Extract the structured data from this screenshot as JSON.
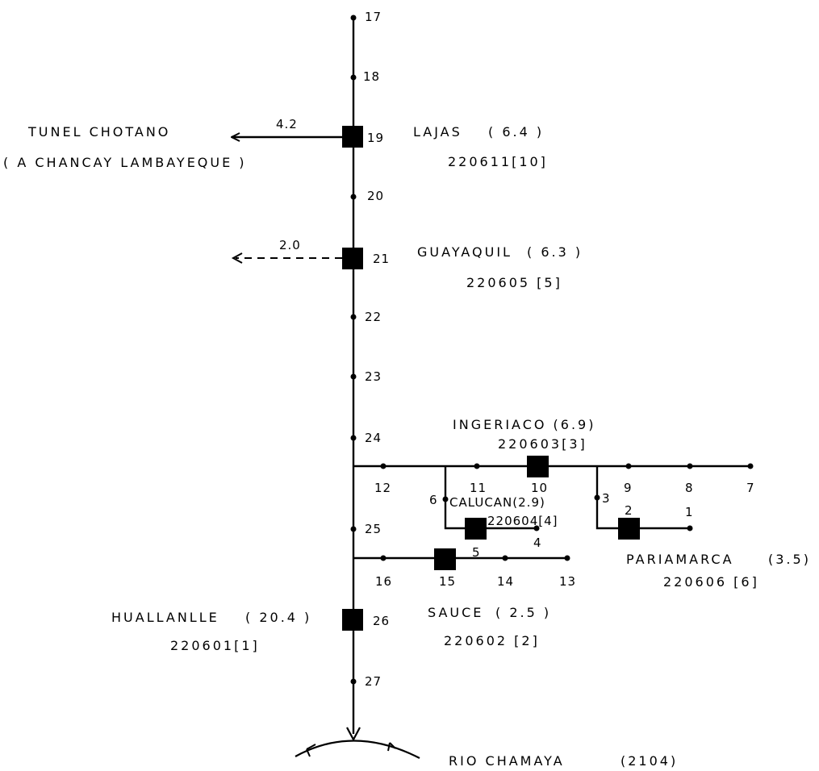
{
  "main_channel": {
    "nodes": [
      "17",
      "18",
      "19",
      "20",
      "21",
      "22",
      "23",
      "24",
      "25",
      "26",
      "27"
    ]
  },
  "tunel": {
    "name": "TUNEL CHOTANO",
    "dest": "( A CHANCAY LAMBAYEQUE )",
    "flow": "4.2"
  },
  "lajas": {
    "name": "LAJAS",
    "value": "( 6.4 )",
    "code": "220611[10]"
  },
  "dashed_branch": {
    "flow": "2.0"
  },
  "guayaquil": {
    "name": "GUAYAQUIL",
    "value": "( 6.3 )",
    "code": "220605 [5]"
  },
  "ingeriaco": {
    "title": "INGERIACO (6.9)",
    "code": "220603[3]"
  },
  "branch_12": {
    "nodes": [
      "12",
      "11",
      "10",
      "9",
      "8",
      "7"
    ]
  },
  "calucan": {
    "title": "CALUCAN(2.9)",
    "code": "220604[4]",
    "nodes": [
      "6",
      "5",
      "4"
    ]
  },
  "pariamarca": {
    "name": "PARIAMARCA",
    "value": "(3.5)",
    "code": "220606 [6]",
    "nodes": [
      "3",
      "2",
      "1"
    ]
  },
  "branch_16": {
    "nodes": [
      "16",
      "15",
      "14",
      "13"
    ]
  },
  "sauce": {
    "name": "SAUCE",
    "value": "( 2.5 )",
    "code": "220602 [2]"
  },
  "huallanlle": {
    "name": "HUALLANLLE",
    "value": "( 20.4 )",
    "code": "220601[1]"
  },
  "river": {
    "name": "RIO CHAMAYA",
    "value": "(2104)"
  }
}
